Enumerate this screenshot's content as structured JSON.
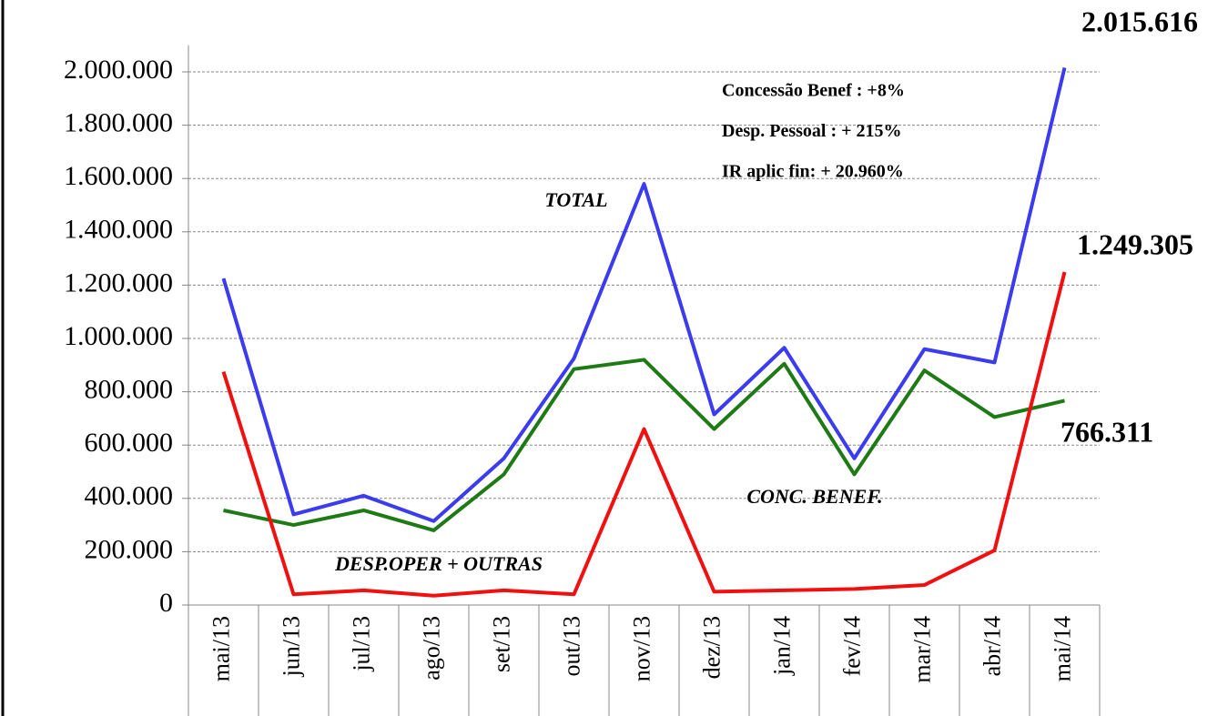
{
  "chart_data": {
    "type": "line",
    "categories": [
      "mai/13",
      "jun/13",
      "jul/13",
      "ago/13",
      "set/13",
      "out/13",
      "nov/13",
      "dez/13",
      "jan/14",
      "fev/14",
      "mar/14",
      "abr/14",
      "mai/14"
    ],
    "series": [
      {
        "name": "TOTAL",
        "color": "#3b3bf0",
        "values": [
          1225000,
          340000,
          410000,
          315000,
          550000,
          925000,
          1580000,
          715000,
          965000,
          550000,
          960000,
          910000,
          2015616
        ],
        "value_labels": [
          null,
          null,
          null,
          null,
          null,
          null,
          null,
          null,
          null,
          null,
          null,
          null,
          "2.015.616"
        ]
      },
      {
        "name": "CONC. BENEF.",
        "color": "#1e7a14",
        "values": [
          355000,
          300000,
          355000,
          280000,
          490000,
          885000,
          920000,
          660000,
          905000,
          490000,
          880000,
          705000,
          766311
        ],
        "value_labels": [
          null,
          null,
          null,
          null,
          null,
          null,
          null,
          null,
          null,
          null,
          null,
          null,
          "766.311"
        ]
      },
      {
        "name": "DESP.OPER + OUTRAS",
        "color": "#f01010",
        "values": [
          875000,
          40000,
          55000,
          35000,
          55000,
          40000,
          660000,
          50000,
          55000,
          60000,
          75000,
          205000,
          1249305
        ],
        "value_labels": [
          null,
          null,
          null,
          null,
          null,
          null,
          null,
          null,
          null,
          null,
          null,
          null,
          "1.249.305"
        ]
      }
    ],
    "ylim": [
      0,
      2100000
    ],
    "yticks": [
      0,
      {
        "value": 200000,
        "label": "200.000"
      },
      {
        "value": 400000,
        "label": "400.000"
      },
      {
        "value": 600000,
        "label": "600.000"
      },
      {
        "value": 800000,
        "label": "800.000"
      },
      {
        "value": 1000000,
        "label": "1.000.000"
      },
      {
        "value": 1200000,
        "label": "1.200.000"
      },
      {
        "value": 1400000,
        "label": "1.400.000"
      },
      {
        "value": 1600000,
        "label": "1.600.000"
      },
      {
        "value": 1800000,
        "label": "1.800.000"
      },
      {
        "value": 2000000,
        "label": "2.000.000"
      }
    ],
    "grid": true,
    "annotations": [
      "Concessão  Benef : +8%",
      "Desp. Pessoal : + 215%",
      "IR aplic fin: + 20.960%"
    ]
  }
}
